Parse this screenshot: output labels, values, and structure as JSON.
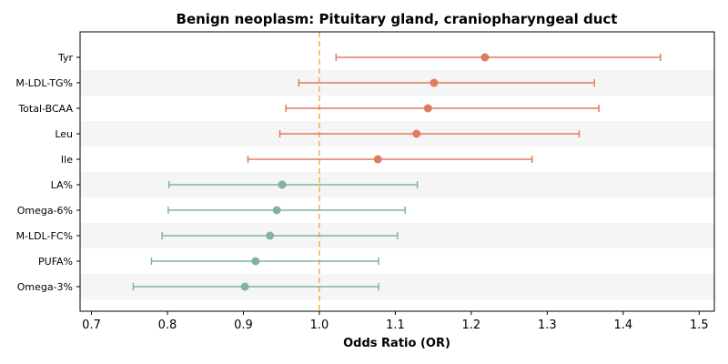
{
  "chart_data": {
    "type": "forest",
    "title": "Benign neoplasm: Pituitary gland, craniopharyngeal duct",
    "xlabel": "Odds Ratio (OR)",
    "xlim": [
      0.685,
      1.52
    ],
    "xticks": [
      "0.7",
      "0.8",
      "0.9",
      "1.0",
      "1.1",
      "1.2",
      "1.3",
      "1.4",
      "1.5"
    ],
    "reference_line": 1.0,
    "rows": [
      {
        "label": "Tyr",
        "or": 1.218,
        "lower": 1.022,
        "upper": 1.449,
        "color": "#e07b5f"
      },
      {
        "label": "M-LDL-TG%",
        "or": 1.151,
        "lower": 0.973,
        "upper": 1.362,
        "color": "#e07b5f"
      },
      {
        "label": "Total-BCAA",
        "or": 1.143,
        "lower": 0.956,
        "upper": 1.368,
        "color": "#e07b5f"
      },
      {
        "label": "Leu",
        "or": 1.128,
        "lower": 0.948,
        "upper": 1.342,
        "color": "#e07b5f"
      },
      {
        "label": "Ile",
        "or": 1.077,
        "lower": 0.906,
        "upper": 1.28,
        "color": "#e07b5f"
      },
      {
        "label": "LA%",
        "or": 0.951,
        "lower": 0.802,
        "upper": 1.129,
        "color": "#82b49b"
      },
      {
        "label": "Omega-6%",
        "or": 0.944,
        "lower": 0.801,
        "upper": 1.113,
        "color": "#82b49b"
      },
      {
        "label": "M-LDL-FC%",
        "or": 0.935,
        "lower": 0.793,
        "upper": 1.103,
        "color": "#82b49b"
      },
      {
        "label": "PUFA%",
        "or": 0.916,
        "lower": 0.779,
        "upper": 1.078,
        "color": "#82b49b"
      },
      {
        "label": "Omega-3%",
        "or": 0.902,
        "lower": 0.755,
        "upper": 1.078,
        "color": "#82b49b"
      }
    ],
    "reference_color": "#f5b041",
    "band_color": "#f5f5f5",
    "grid": false
  }
}
